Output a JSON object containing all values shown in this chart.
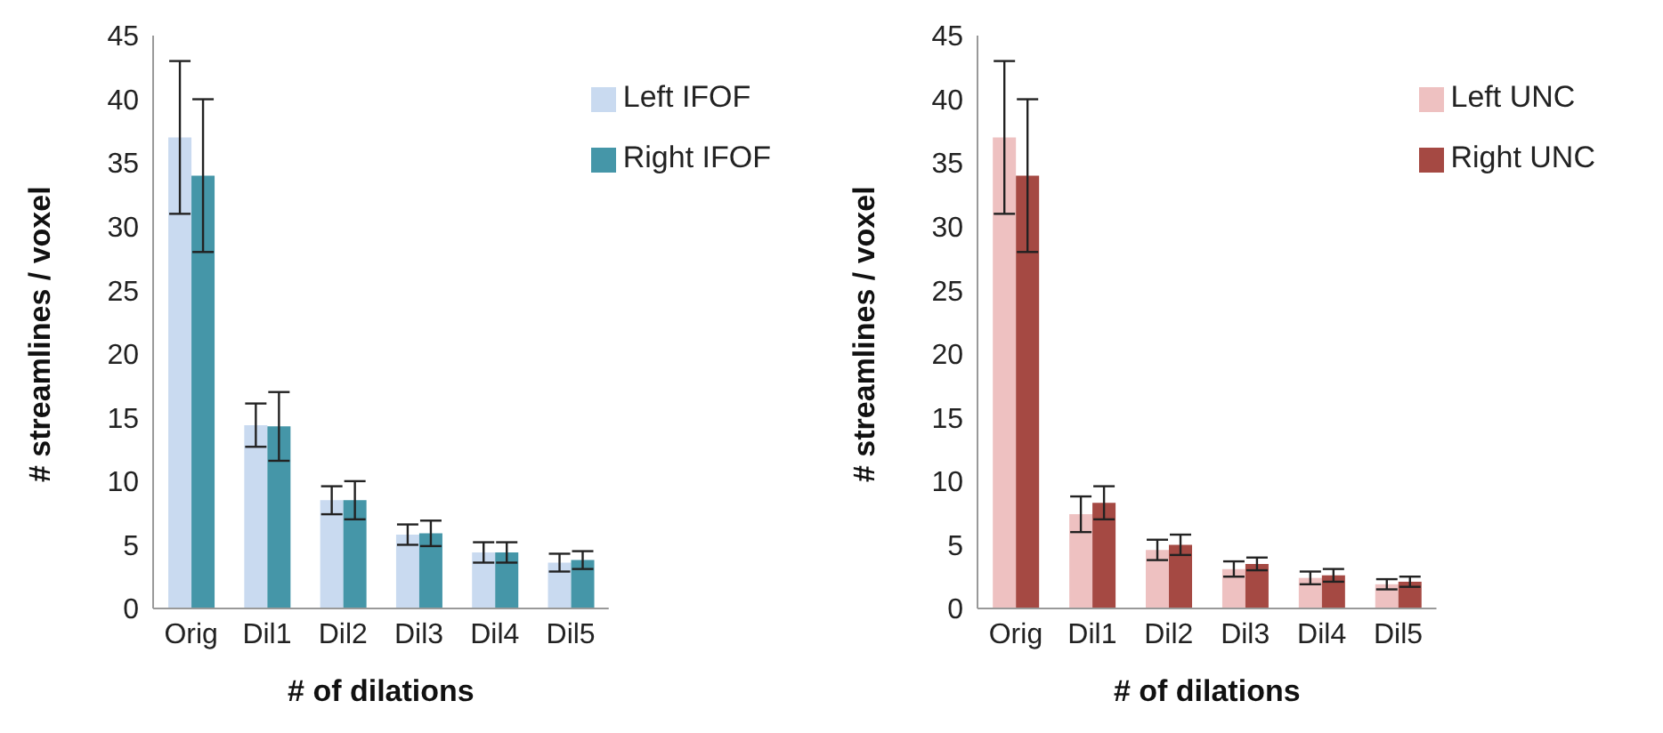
{
  "chart_data": [
    {
      "type": "bar",
      "xlabel": "# of dilations",
      "ylabel": "# streamlines / voxel",
      "categories": [
        "Orig",
        "Dil1",
        "Dil2",
        "Dil3",
        "Dil4",
        "Dil5"
      ],
      "series": [
        {
          "name": "Left IFOF",
          "color": "#c9daf0",
          "values": [
            37,
            14.4,
            8.5,
            5.8,
            4.4,
            3.6
          ],
          "errors": [
            6,
            1.7,
            1.1,
            0.8,
            0.8,
            0.7
          ]
        },
        {
          "name": "Right IFOF",
          "color": "#4596a8",
          "values": [
            34,
            14.3,
            8.5,
            5.9,
            4.4,
            3.8
          ],
          "errors": [
            6,
            2.7,
            1.5,
            1.0,
            0.8,
            0.7
          ]
        }
      ],
      "ylim": [
        0,
        45
      ],
      "yticks": [
        0,
        5,
        10,
        15,
        20,
        25,
        30,
        35,
        40,
        45
      ],
      "grid": false,
      "legend": "top right"
    },
    {
      "type": "bar",
      "xlabel": "# of dilations",
      "ylabel": "# streamlines / voxel",
      "categories": [
        "Orig",
        "Dil1",
        "Dil2",
        "Dil3",
        "Dil4",
        "Dil5"
      ],
      "series": [
        {
          "name": "Left UNC",
          "color": "#eec1c1",
          "values": [
            37,
            7.4,
            4.6,
            3.1,
            2.4,
            1.9
          ],
          "errors": [
            6,
            1.4,
            0.8,
            0.6,
            0.5,
            0.4
          ]
        },
        {
          "name": "Right UNC",
          "color": "#a54943",
          "values": [
            34,
            8.3,
            5.0,
            3.5,
            2.6,
            2.1
          ],
          "errors": [
            6,
            1.3,
            0.8,
            0.5,
            0.5,
            0.4
          ]
        }
      ],
      "ylim": [
        0,
        45
      ],
      "yticks": [
        0,
        5,
        10,
        15,
        20,
        25,
        30,
        35,
        40,
        45
      ],
      "grid": false,
      "legend": "top right"
    }
  ]
}
